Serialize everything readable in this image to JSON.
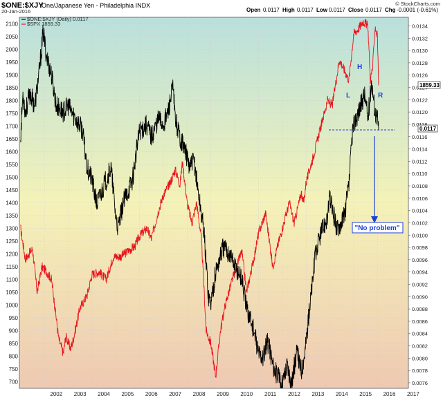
{
  "header": {
    "symbol": "$ONE:$XJY",
    "name": "One/Japanese Yen - Philadelphia INDX",
    "date": "20-Jan-2016",
    "open_label": "Open",
    "open": "0.0117",
    "high_label": "High",
    "high": "0.0117",
    "low_label": "Low",
    "low": "0.0117",
    "close_label": "Close",
    "close": "0.0117",
    "chg_label": "Chg",
    "chg": "-0.0001 (-0.61%)",
    "legend_one": "$ONE:$XJY (Daily) 0.0117",
    "legend_spx": "$SPX 1859.33",
    "watermark": "© StockCharts.com"
  },
  "annotations": {
    "H": "H",
    "L": "L",
    "R": "R",
    "no_problem": "\"No problem\""
  },
  "colors": {
    "spx": "#e8141c",
    "one_xjy": "#000000",
    "annotation": "#1a3fd8",
    "bg_top": "#b9e0dc",
    "bg_mid": "#f4f2b8",
    "bg_bottom": "#eec9b2"
  },
  "chart_data": {
    "type": "line",
    "x_ticks": [
      "2002",
      "2003",
      "2004",
      "2005",
      "2006",
      "2007",
      "2008",
      "2009",
      "2010",
      "2011",
      "2012",
      "2013",
      "2014",
      "2015",
      "2016",
      "2017"
    ],
    "x_range": [
      2000.95,
      2017.3
    ],
    "y_left": {
      "ticks": [
        700,
        750,
        800,
        850,
        900,
        950,
        1000,
        1050,
        1100,
        1150,
        1200,
        1250,
        1300,
        1350,
        1400,
        1450,
        1500,
        1550,
        1600,
        1650,
        1700,
        1750,
        1800,
        1850,
        1900,
        1950,
        2000,
        2050,
        2100
      ],
      "range": [
        675,
        2125
      ]
    },
    "y_right": {
      "ticks": [
        "0.0076",
        "0.0078",
        "0.0080",
        "0.0082",
        "0.0084",
        "0.0086",
        "0.0088",
        "0.0090",
        "0.0092",
        "0.0094",
        "0.0096",
        "0.0098",
        "0.0100",
        "0.0102",
        "0.0104",
        "0.0106",
        "0.0108",
        "0.0110",
        "0.0112",
        "0.0114",
        "0.0116",
        "0.0118",
        "0.0120",
        "0.0122",
        "0.0124",
        "0.0126",
        "0.0128",
        "0.0130",
        "0.0132",
        "0.0134"
      ],
      "range": [
        0.00751,
        0.01354
      ]
    },
    "last_values": {
      "spx": "1859.33",
      "one_xjy": "0.0117"
    },
    "series": [
      {
        "name": "$SPX 1859.33",
        "axis": "left",
        "points": [
          [
            2001.0,
            1300
          ],
          [
            2001.2,
            1180
          ],
          [
            2001.5,
            1220
          ],
          [
            2001.7,
            1050
          ],
          [
            2001.9,
            1150
          ],
          [
            2002.1,
            1130
          ],
          [
            2002.3,
            1100
          ],
          [
            2002.5,
            950
          ],
          [
            2002.6,
            870
          ],
          [
            2002.8,
            810
          ],
          [
            2002.9,
            880
          ],
          [
            2003.1,
            830
          ],
          [
            2003.2,
            860
          ],
          [
            2003.5,
            990
          ],
          [
            2003.8,
            1040
          ],
          [
            2004.0,
            1120
          ],
          [
            2004.3,
            1130
          ],
          [
            2004.6,
            1100
          ],
          [
            2004.9,
            1190
          ],
          [
            2005.2,
            1190
          ],
          [
            2005.5,
            1210
          ],
          [
            2005.8,
            1230
          ],
          [
            2006.0,
            1270
          ],
          [
            2006.3,
            1300
          ],
          [
            2006.5,
            1260
          ],
          [
            2006.8,
            1370
          ],
          [
            2007.0,
            1430
          ],
          [
            2007.3,
            1480
          ],
          [
            2007.5,
            1530
          ],
          [
            2007.7,
            1470
          ],
          [
            2007.8,
            1560
          ],
          [
            2008.0,
            1400
          ],
          [
            2008.2,
            1320
          ],
          [
            2008.4,
            1400
          ],
          [
            2008.6,
            1260
          ],
          [
            2008.8,
            900
          ],
          [
            2009.0,
            850
          ],
          [
            2009.2,
            720
          ],
          [
            2009.4,
            900
          ],
          [
            2009.6,
            1000
          ],
          [
            2009.9,
            1100
          ],
          [
            2010.3,
            1210
          ],
          [
            2010.5,
            1050
          ],
          [
            2010.8,
            1180
          ],
          [
            2011.0,
            1280
          ],
          [
            2011.3,
            1360
          ],
          [
            2011.6,
            1150
          ],
          [
            2011.8,
            1230
          ],
          [
            2012.0,
            1300
          ],
          [
            2012.3,
            1400
          ],
          [
            2012.5,
            1320
          ],
          [
            2012.8,
            1440
          ],
          [
            2012.9,
            1400
          ],
          [
            2013.0,
            1480
          ],
          [
            2013.3,
            1580
          ],
          [
            2013.6,
            1690
          ],
          [
            2013.9,
            1800
          ],
          [
            2014.1,
            1780
          ],
          [
            2014.4,
            1960
          ],
          [
            2014.8,
            1880
          ],
          [
            2015.0,
            2060
          ],
          [
            2015.2,
            2080
          ],
          [
            2015.4,
            2110
          ],
          [
            2015.6,
            2090
          ],
          [
            2015.7,
            1880
          ],
          [
            2015.8,
            1930
          ],
          [
            2015.9,
            2090
          ],
          [
            2016.0,
            2050
          ],
          [
            2016.05,
            1859
          ]
        ]
      },
      {
        "name": "$ONE:$XJY (Daily) 0.0117",
        "axis": "right",
        "points": [
          [
            2001.0,
            0.0116
          ],
          [
            2001.1,
            0.0123
          ],
          [
            2001.2,
            0.012
          ],
          [
            2001.4,
            0.0123
          ],
          [
            2001.6,
            0.0121
          ],
          [
            2001.8,
            0.0127
          ],
          [
            2001.95,
            0.0133
          ],
          [
            2002.1,
            0.0129
          ],
          [
            2002.3,
            0.0126
          ],
          [
            2002.5,
            0.0121
          ],
          [
            2002.8,
            0.012
          ],
          [
            2003.0,
            0.0121
          ],
          [
            2003.3,
            0.0119
          ],
          [
            2003.6,
            0.0117
          ],
          [
            2003.8,
            0.0111
          ],
          [
            2004.0,
            0.0109
          ],
          [
            2004.2,
            0.0105
          ],
          [
            2004.5,
            0.0108
          ],
          [
            2004.8,
            0.0111
          ],
          [
            2005.0,
            0.0103
          ],
          [
            2005.1,
            0.0101
          ],
          [
            2005.3,
            0.0105
          ],
          [
            2005.7,
            0.0109
          ],
          [
            2006.0,
            0.0117
          ],
          [
            2006.3,
            0.0118
          ],
          [
            2006.5,
            0.0116
          ],
          [
            2006.8,
            0.0119
          ],
          [
            2007.0,
            0.0118
          ],
          [
            2007.2,
            0.012
          ],
          [
            2007.4,
            0.0124
          ],
          [
            2007.5,
            0.0119
          ],
          [
            2007.7,
            0.0116
          ],
          [
            2007.9,
            0.0114
          ],
          [
            2008.1,
            0.0111
          ],
          [
            2008.3,
            0.0112
          ],
          [
            2008.5,
            0.0106
          ],
          [
            2008.7,
            0.0101
          ],
          [
            2008.9,
            0.009
          ],
          [
            2009.0,
            0.0089
          ],
          [
            2009.2,
            0.0094
          ],
          [
            2009.5,
            0.0098
          ],
          [
            2009.8,
            0.0097
          ],
          [
            2010.0,
            0.0095
          ],
          [
            2010.3,
            0.0093
          ],
          [
            2010.5,
            0.0088
          ],
          [
            2010.7,
            0.0086
          ],
          [
            2011.0,
            0.0081
          ],
          [
            2011.2,
            0.008
          ],
          [
            2011.4,
            0.0083
          ],
          [
            2011.6,
            0.0079
          ],
          [
            2011.8,
            0.0077
          ],
          [
            2012.0,
            0.0076
          ],
          [
            2012.2,
            0.0079
          ],
          [
            2012.4,
            0.0076
          ],
          [
            2012.6,
            0.0081
          ],
          [
            2012.8,
            0.0078
          ],
          [
            2012.95,
            0.0081
          ],
          [
            2013.2,
            0.009
          ],
          [
            2013.4,
            0.0097
          ],
          [
            2013.6,
            0.01
          ],
          [
            2013.9,
            0.0103
          ],
          [
            2014.0,
            0.0106
          ],
          [
            2014.3,
            0.0101
          ],
          [
            2014.6,
            0.0103
          ],
          [
            2014.8,
            0.0108
          ],
          [
            2014.95,
            0.0117
          ],
          [
            2015.1,
            0.0119
          ],
          [
            2015.3,
            0.0121
          ],
          [
            2015.45,
            0.0123
          ],
          [
            2015.6,
            0.0119
          ],
          [
            2015.75,
            0.0125
          ],
          [
            2015.9,
            0.012
          ],
          [
            2016.0,
            0.0119
          ],
          [
            2016.05,
            0.0117
          ]
        ]
      }
    ]
  }
}
